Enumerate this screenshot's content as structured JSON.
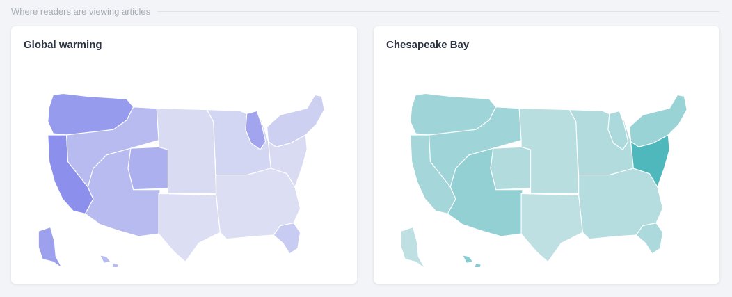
{
  "section": {
    "title": "Where readers are viewing articles"
  },
  "cards": [
    {
      "title": "Global warming",
      "palette": {
        "low": "#e9ebf5",
        "high": "#7b80ea",
        "base": "#e3e5ee",
        "border": "#ffffff"
      },
      "regions": {
        "northwest": 0.75,
        "california": 0.85,
        "mountain_west": 0.45,
        "colorado": 0.55,
        "southwest": 0.45,
        "great_plains": 0.15,
        "texas": 0.12,
        "midwest": 0.2,
        "michigan": 0.65,
        "south": 0.12,
        "florida": 0.3,
        "northeast": 0.25,
        "mid_atlantic": 0.15,
        "alaska": 0.7,
        "hawaii": 0.45
      }
    },
    {
      "title": "Chesapeake Bay",
      "palette": {
        "low": "#c4e2e4",
        "high": "#49b6bb",
        "base": "#aeb5b8",
        "border": "#ffffff"
      },
      "regions": {
        "northwest": 0.3,
        "california": 0.25,
        "mountain_west": 0.3,
        "colorado": 0.15,
        "southwest": 0.4,
        "great_plains": 0.1,
        "texas": 0.05,
        "midwest": 0.15,
        "michigan": 0.2,
        "south": 0.12,
        "florida": 0.2,
        "northeast": 0.35,
        "mid_atlantic": 0.95,
        "alaska": 0.05,
        "hawaii": 0.5
      }
    }
  ]
}
